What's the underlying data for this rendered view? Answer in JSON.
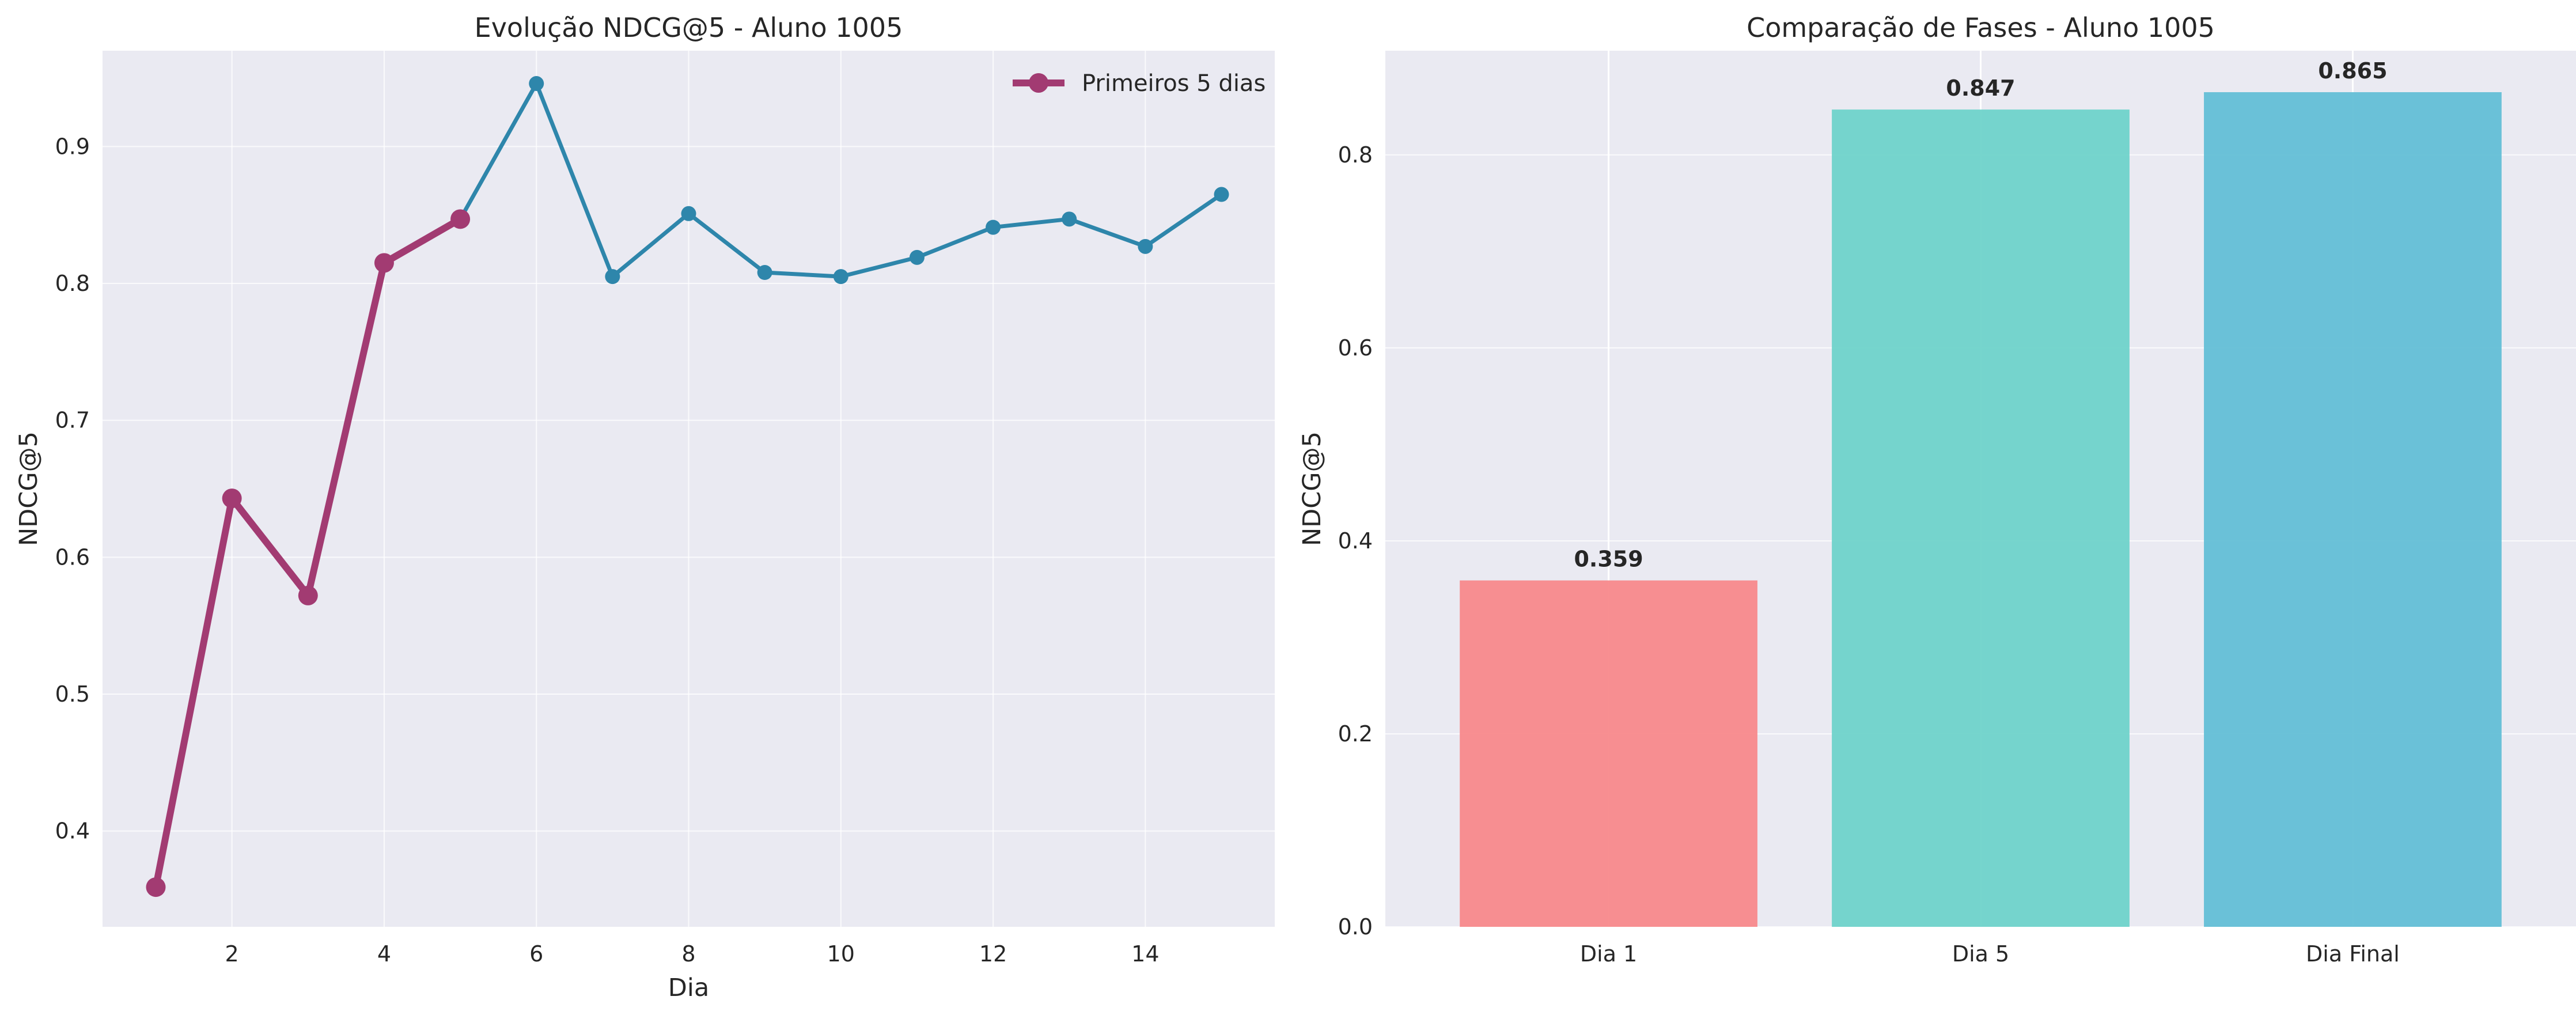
{
  "chart_data": [
    {
      "type": "line",
      "title": "Evolução NDCG@5 - Aluno 1005",
      "xlabel": "Dia",
      "ylabel": "NDCG@5",
      "xlim": [
        0.3,
        15.7
      ],
      "ylim": [
        0.33,
        0.97
      ],
      "xticks": [
        "2",
        "4",
        "6",
        "8",
        "10",
        "12",
        "14"
      ],
      "yticks": [
        "0.4",
        "0.5",
        "0.6",
        "0.7",
        "0.8",
        "0.9"
      ],
      "grid": true,
      "legend_position": "top-right",
      "series": [
        {
          "x": [
            1,
            2,
            3,
            4,
            5,
            6,
            7,
            8,
            9,
            10,
            11,
            12,
            13,
            14,
            15
          ],
          "y": [
            0.359,
            0.643,
            0.572,
            0.815,
            0.847,
            0.946,
            0.805,
            0.851,
            0.808,
            0.805,
            0.819,
            0.841,
            0.847,
            0.827,
            0.865
          ],
          "color": "#2e86ab"
        },
        {
          "name": "Primeiros 5 dias",
          "x": [
            1,
            2,
            3,
            4,
            5
          ],
          "y": [
            0.359,
            0.643,
            0.572,
            0.815,
            0.847
          ],
          "color": "#a23b72"
        }
      ]
    },
    {
      "type": "bar",
      "title": "Comparação de Fases - Aluno 1005",
      "xlabel": "",
      "ylabel": "NDCG@5",
      "ylim": [
        0,
        0.908
      ],
      "yticks": [
        "0.0",
        "0.2",
        "0.4",
        "0.6",
        "0.8"
      ],
      "grid": true,
      "categories": [
        "Dia 1",
        "Dia 5",
        "Dia Final"
      ],
      "values": [
        0.359,
        0.847,
        0.865
      ],
      "value_labels": [
        "0.359",
        "0.847",
        "0.865"
      ],
      "colors": [
        "#f8898b",
        "#6fd3ca",
        "#63bfd6"
      ]
    }
  ]
}
